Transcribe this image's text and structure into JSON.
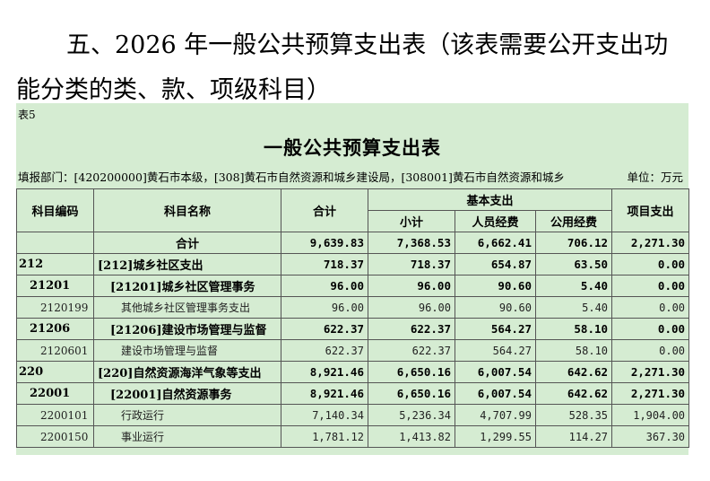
{
  "heading": [
    "五、2026 年一般公共预算支出表（该表需要公开支出功",
    "能分类的类、款、项级科目）"
  ],
  "table_no": "表5",
  "title": "一般公共预算支出表",
  "unit_info": "填报部门：[420200000]黄石市本级，[308]黄石市自然资源和城乡建设局，[308001]黄石市自然资源和城乡",
  "unit": "单位：万元",
  "table": {
    "header": {
      "code": "科目编码",
      "name": "科目名称",
      "total": "合计",
      "basic": "基本支出",
      "subtotal": "小计",
      "personnel": "人员经费",
      "public": "公用经费",
      "project": "项目支出"
    },
    "rows": [
      [
        "",
        "合计",
        "9,639.83",
        "7,368.53",
        "6,662.41",
        "706.12",
        "2,271.30"
      ],
      [
        "212",
        "[212]城乡社区支出",
        "718.37",
        "718.37",
        "654.87",
        "63.50",
        "0.00"
      ],
      [
        "21201",
        "[21201]城乡社区管理事务",
        "96.00",
        "96.00",
        "90.60",
        "5.40",
        "0.00"
      ],
      [
        "2120199",
        "其他城乡社区管理事务支出",
        "96.00",
        "96.00",
        "90.60",
        "5.40",
        "0.00"
      ],
      [
        "21206",
        "[21206]建设市场管理与监督",
        "622.37",
        "622.37",
        "564.27",
        "58.10",
        "0.00"
      ],
      [
        "2120601",
        "建设市场管理与监督",
        "622.37",
        "622.37",
        "564.27",
        "58.10",
        "0.00"
      ],
      [
        "220",
        "[220]自然资源海洋气象等支出",
        "8,921.46",
        "6,650.16",
        "6,007.54",
        "642.62",
        "2,271.30"
      ],
      [
        "22001",
        "[22001]自然资源事务",
        "8,921.46",
        "6,650.16",
        "6,007.54",
        "642.62",
        "2,271.30"
      ],
      [
        "2200101",
        "行政运行",
        "7,140.34",
        "5,236.34",
        "4,707.99",
        "528.35",
        "1,904.00"
      ],
      [
        "2200150",
        "事业运行",
        "1,781.12",
        "1,413.82",
        "1,299.55",
        "114.27",
        "367.30"
      ]
    ]
  }
}
